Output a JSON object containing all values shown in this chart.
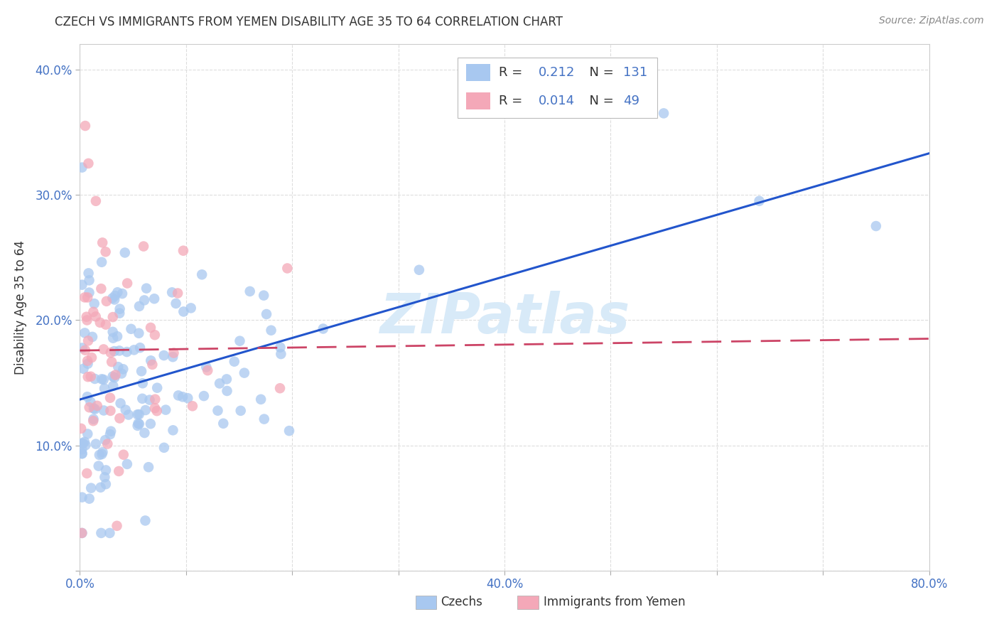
{
  "title": "CZECH VS IMMIGRANTS FROM YEMEN DISABILITY AGE 35 TO 64 CORRELATION CHART",
  "source": "Source: ZipAtlas.com",
  "ylabel": "Disability Age 35 to 64",
  "xlim": [
    0.0,
    0.8
  ],
  "ylim": [
    0.0,
    0.42
  ],
  "xticks": [
    0.0,
    0.1,
    0.2,
    0.3,
    0.4,
    0.5,
    0.6,
    0.7,
    0.8
  ],
  "xticklabels": [
    "0.0%",
    "",
    "",
    "",
    "40.0%",
    "",
    "",
    "",
    "80.0%"
  ],
  "yticks": [
    0.0,
    0.1,
    0.2,
    0.3,
    0.4
  ],
  "yticklabels": [
    "",
    "10.0%",
    "20.0%",
    "30.0%",
    "40.0%"
  ],
  "czech_color": "#a8c8f0",
  "yemen_color": "#f4a8b8",
  "czech_R": 0.212,
  "czech_N": 131,
  "yemen_R": 0.014,
  "yemen_N": 49,
  "czech_line_color": "#2255cc",
  "yemen_line_color": "#cc4466",
  "background_color": "#ffffff",
  "grid_color": "#dddddd",
  "watermark_color": "#d8eaf8",
  "title_color": "#333333",
  "source_color": "#888888",
  "tick_color": "#4472c4",
  "ylabel_color": "#333333"
}
